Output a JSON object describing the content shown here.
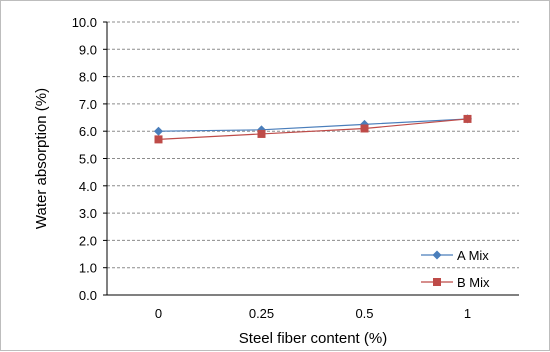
{
  "chart_data": {
    "type": "line",
    "title": "",
    "xlabel": "Steel fiber content (%)",
    "ylabel": "Water absorption (%)",
    "categories": [
      "0",
      "0.25",
      "0.5",
      "1"
    ],
    "ylim": [
      0,
      10
    ],
    "ytick_labels": [
      "0.0",
      "1.0",
      "2.0",
      "3.0",
      "4.0",
      "5.0",
      "6.0",
      "7.0",
      "8.0",
      "9.0",
      "10.0"
    ],
    "grid": "horizontal dashed",
    "legend_position": "bottom-right",
    "series": [
      {
        "name": "A Mix",
        "values": [
          6.0,
          6.05,
          6.25,
          6.45
        ],
        "color": "#4a7ebb",
        "marker": "diamond"
      },
      {
        "name": "B Mix",
        "values": [
          5.7,
          5.9,
          6.1,
          6.45
        ],
        "color": "#be4b48",
        "marker": "square"
      }
    ]
  }
}
